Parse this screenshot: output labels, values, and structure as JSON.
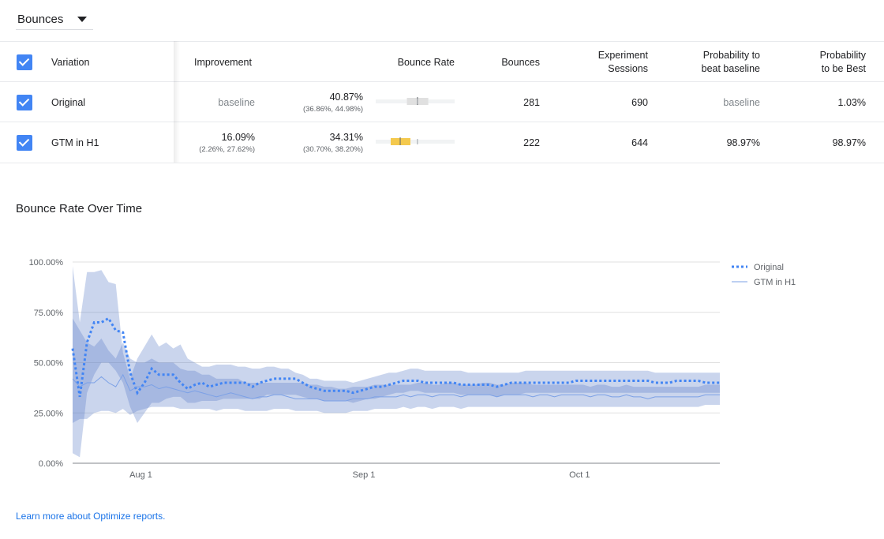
{
  "metric_selector": {
    "value": "Bounces"
  },
  "table": {
    "headers": {
      "variation": "Variation",
      "improvement": "Improvement",
      "bounce_rate": "Bounce Rate",
      "bounces": "Bounces",
      "sessions_line1": "Experiment",
      "sessions_line2": "Sessions",
      "prob_beat_line1": "Probability to",
      "prob_beat_line2": "beat baseline",
      "prob_best_line1": "Probability",
      "prob_best_line2": "to be Best"
    },
    "rows": [
      {
        "name": "Original",
        "improvement": "baseline",
        "improvement_range": "",
        "bounce_rate": "40.87%",
        "bounce_rate_range": "(36.86%, 44.98%)",
        "bounces": "281",
        "sessions": "690",
        "prob_beat": "baseline",
        "prob_best": "1.03%",
        "bar": {
          "low": 36.86,
          "high": 44.98,
          "mid": 40.87,
          "color": "#e0e0e0"
        }
      },
      {
        "name": "GTM in H1",
        "improvement": "16.09%",
        "improvement_range": "(2.26%, 27.62%)",
        "bounce_rate": "34.31%",
        "bounce_rate_range": "(30.70%, 38.20%)",
        "bounces": "222",
        "sessions": "644",
        "prob_beat": "98.97%",
        "prob_best": "98.97%",
        "bar": {
          "low": 30.7,
          "high": 38.2,
          "mid": 34.31,
          "color": "#f4c94e"
        }
      }
    ]
  },
  "chart_title": "Bounce Rate Over Time",
  "chart_data": {
    "type": "line",
    "x_tick_labels": [
      "Aug 1",
      "Sep 1",
      "Oct 1"
    ],
    "y_tick_labels": [
      "100.00%",
      "75.00%",
      "50.00%",
      "25.00%",
      "0.00%"
    ],
    "ylim": [
      0,
      100
    ],
    "x": [
      1,
      2,
      3,
      4,
      5,
      6,
      7,
      8,
      9,
      10,
      11,
      12,
      13,
      14,
      15,
      16,
      17,
      18,
      19,
      20,
      21,
      22,
      23,
      24,
      25,
      26,
      27,
      28,
      29,
      30,
      31,
      32,
      33,
      34,
      35,
      36,
      37,
      38,
      39,
      40,
      41,
      42,
      43,
      44,
      45,
      46,
      47,
      48,
      49,
      50,
      51,
      52,
      53,
      54,
      55,
      56,
      57,
      58,
      59,
      60,
      61,
      62,
      63,
      64,
      65,
      66,
      67,
      68,
      69,
      70,
      71,
      72,
      73,
      74,
      75,
      76,
      77,
      78,
      79,
      80,
      81,
      82,
      83,
      84,
      85,
      86,
      87,
      88,
      89,
      90,
      91
    ],
    "x_tick_positions": [
      10.5,
      41.5,
      71.5
    ],
    "series": [
      {
        "name": "Original",
        "color": "#4285f4",
        "style": "dotted",
        "values": [
          57,
          33,
          60,
          70,
          70,
          72,
          66,
          65,
          45,
          35,
          40,
          47,
          44,
          44,
          44,
          40,
          37,
          39,
          40,
          38,
          39,
          40,
          40,
          40,
          40,
          38,
          40,
          41,
          42,
          42,
          42,
          42,
          40,
          38,
          37,
          36,
          36,
          36,
          36,
          35,
          36,
          37,
          38,
          38,
          39,
          40,
          41,
          41,
          41,
          40,
          40,
          40,
          40,
          40,
          39,
          39,
          39,
          39,
          39,
          38,
          39,
          40,
          40,
          40,
          40,
          40,
          40,
          40,
          40,
          40,
          41,
          41,
          41,
          41,
          41,
          41,
          41,
          41,
          41,
          41,
          41,
          40,
          40,
          40,
          41,
          41,
          41,
          41,
          40,
          40,
          40
        ],
        "upper": [
          98,
          70,
          95,
          95,
          96,
          90,
          89,
          55,
          42,
          52,
          58,
          64,
          58,
          60,
          57,
          59,
          52,
          50,
          48,
          48,
          49,
          49,
          49,
          48,
          48,
          47,
          47,
          48,
          48,
          47,
          47,
          45,
          44,
          42,
          42,
          41,
          41,
          41,
          41,
          40,
          41,
          42,
          43,
          44,
          45,
          45,
          46,
          47,
          47,
          46,
          46,
          46,
          46,
          46,
          46,
          45,
          45,
          45,
          45,
          45,
          45,
          45,
          45,
          46,
          46,
          46,
          46,
          46,
          46,
          46,
          46,
          46,
          46,
          46,
          46,
          46,
          46,
          46,
          46,
          46,
          46,
          45,
          45,
          45,
          45,
          45,
          45,
          45,
          45,
          45,
          45
        ],
        "lower": [
          5,
          3,
          35,
          44,
          50,
          50,
          46,
          40,
          28,
          20,
          25,
          30,
          30,
          32,
          33,
          33,
          30,
          30,
          31,
          31,
          31,
          32,
          32,
          32,
          32,
          32,
          32,
          34,
          34,
          34,
          34,
          34,
          33,
          32,
          32,
          31,
          31,
          31,
          31,
          30,
          31,
          32,
          32,
          33,
          34,
          35,
          35,
          36,
          36,
          35,
          35,
          35,
          35,
          35,
          34,
          34,
          34,
          34,
          34,
          33,
          34,
          34,
          34,
          35,
          35,
          35,
          35,
          35,
          35,
          35,
          35,
          35,
          35,
          35,
          35,
          35,
          35,
          35,
          35,
          35,
          35,
          35,
          35,
          35,
          35,
          35,
          35,
          35,
          35,
          35,
          35
        ]
      },
      {
        "name": "GTM in H1",
        "color": "#7ba0e6",
        "style": "solid",
        "values": [
          42,
          38,
          40,
          40,
          43,
          40,
          38,
          44,
          36,
          38,
          38,
          39,
          37,
          38,
          37,
          36,
          35,
          36,
          35,
          34,
          33,
          34,
          35,
          34,
          33,
          32,
          33,
          33,
          34,
          34,
          33,
          32,
          32,
          32,
          32,
          31,
          31,
          31,
          31,
          32,
          32,
          32,
          33,
          33,
          33,
          33,
          34,
          33,
          34,
          34,
          33,
          34,
          34,
          34,
          33,
          34,
          34,
          34,
          34,
          33,
          34,
          34,
          34,
          34,
          33,
          34,
          34,
          33,
          34,
          34,
          34,
          34,
          33,
          34,
          34,
          33,
          33,
          34,
          33,
          33,
          32,
          33,
          33,
          33,
          33,
          33,
          33,
          33,
          34,
          34,
          34
        ],
        "upper": [
          72,
          66,
          60,
          58,
          62,
          56,
          52,
          60,
          52,
          50,
          50,
          52,
          50,
          50,
          50,
          47,
          46,
          46,
          44,
          44,
          42,
          42,
          42,
          42,
          40,
          40,
          40,
          40,
          40,
          40,
          40,
          40,
          40,
          39,
          39,
          38,
          38,
          37,
          37,
          38,
          38,
          38,
          39,
          39,
          39,
          39,
          39,
          39,
          40,
          40,
          39,
          39,
          40,
          40,
          39,
          39,
          39,
          40,
          40,
          39,
          39,
          40,
          40,
          40,
          39,
          39,
          39,
          39,
          39,
          39,
          39,
          39,
          38,
          39,
          39,
          38,
          38,
          39,
          38,
          38,
          38,
          38,
          38,
          38,
          38,
          38,
          38,
          38,
          39,
          39,
          39
        ],
        "lower": [
          20,
          22,
          22,
          25,
          26,
          26,
          25,
          27,
          24,
          26,
          27,
          28,
          28,
          28,
          28,
          27,
          27,
          27,
          27,
          27,
          26,
          27,
          27,
          27,
          26,
          26,
          26,
          26,
          27,
          27,
          27,
          26,
          26,
          26,
          26,
          25,
          25,
          25,
          25,
          26,
          26,
          26,
          27,
          27,
          27,
          27,
          28,
          27,
          28,
          28,
          27,
          28,
          28,
          28,
          27,
          28,
          28,
          28,
          28,
          28,
          28,
          28,
          28,
          28,
          28,
          28,
          28,
          28,
          28,
          28,
          28,
          28,
          28,
          28,
          28,
          28,
          28,
          28,
          28,
          28,
          28,
          28,
          28,
          28,
          28,
          28,
          28,
          28,
          29,
          29,
          29
        ]
      }
    ],
    "legend": "right"
  },
  "footer": {
    "link": "Learn more about Optimize reports."
  }
}
